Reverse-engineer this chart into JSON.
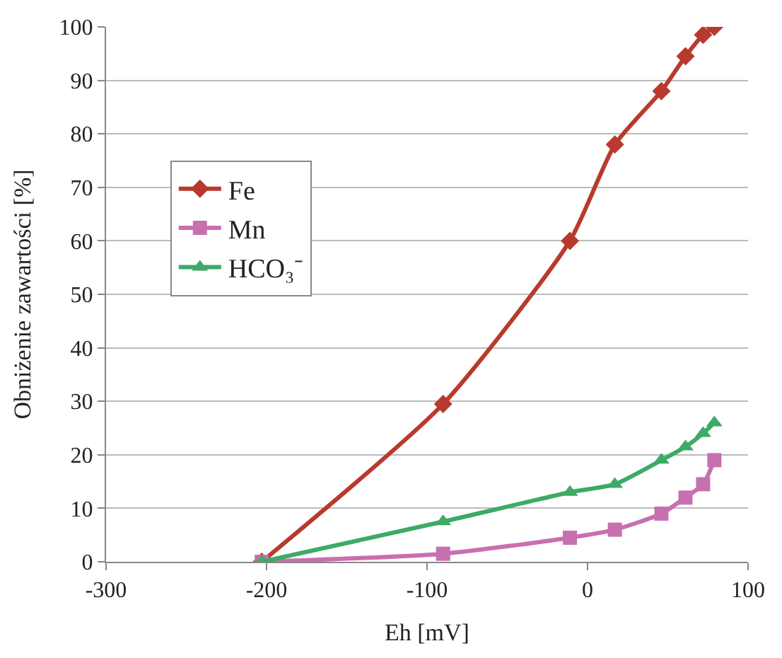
{
  "chart_data": {
    "type": "line",
    "xlabel": "Eh [mV]",
    "ylabel": "Obniżenie zawartości [%]",
    "x": [
      -203,
      -90,
      -11,
      17,
      46,
      61,
      72,
      79
    ],
    "series": [
      {
        "name": "Fe",
        "color": "#b83a2e",
        "marker": "diamond",
        "values": [
          0,
          29.5,
          60,
          78,
          88,
          94.5,
          98.5,
          100
        ]
      },
      {
        "name": "Mn",
        "color": "#c86fb0",
        "marker": "square",
        "values": [
          0,
          1.5,
          4.5,
          6,
          9,
          12,
          14.5,
          19
        ]
      },
      {
        "name": "HCO₃⁻",
        "color": "#3daa66",
        "marker": "triangle",
        "values": [
          0,
          7.5,
          13,
          14.5,
          19,
          21.5,
          24,
          26
        ]
      }
    ],
    "xlim": [
      -300,
      100
    ],
    "xticks": [
      -300,
      -200,
      -100,
      0,
      100
    ],
    "ylim": [
      0,
      100
    ],
    "yticks": [
      0,
      10,
      20,
      30,
      40,
      50,
      60,
      70,
      80,
      90,
      100
    ],
    "grid": "y",
    "legend": "top left",
    "line_style": "solid"
  }
}
